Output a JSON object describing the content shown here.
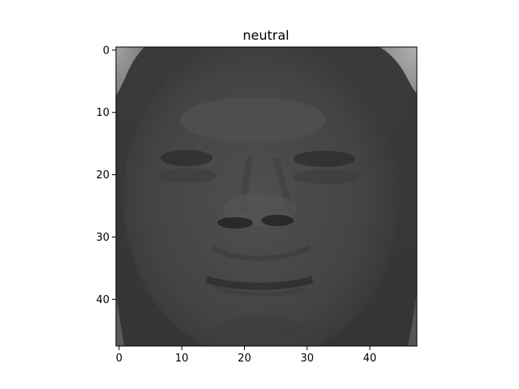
{
  "figure": {
    "title": "neutral",
    "image_name": "grayscale-face-photo",
    "image_colormap": "gray",
    "image_shape": [
      48,
      48
    ]
  },
  "axes": {
    "x_ticks": [
      "0",
      "10",
      "20",
      "30",
      "40"
    ],
    "y_ticks": [
      "0",
      "10",
      "20",
      "30",
      "40"
    ],
    "xlim": [
      -0.5,
      47.5
    ],
    "ylim": [
      47.5,
      -0.5
    ]
  }
}
